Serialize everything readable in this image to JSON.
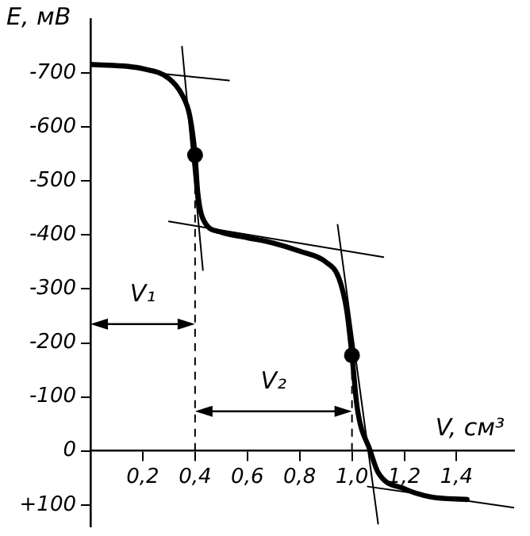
{
  "chart_data": {
    "type": "line",
    "xlabel": "V, см³",
    "ylabel": "E, мВ",
    "xlim": [
      0,
      1.62
    ],
    "ylim": [
      140,
      -800
    ],
    "xticks": [
      {
        "value": 0.2,
        "label": "0,2"
      },
      {
        "value": 0.4,
        "label": "0,4"
      },
      {
        "value": 0.6,
        "label": "0,6"
      },
      {
        "value": 0.8,
        "label": "0,8"
      },
      {
        "value": 1.0,
        "label": "1,0"
      },
      {
        "value": 1.2,
        "label": "1,2"
      },
      {
        "value": 1.4,
        "label": "1,4"
      }
    ],
    "yticks": [
      -700,
      -600,
      -500,
      -400,
      -300,
      -200,
      -100,
      0,
      {
        "value": 100,
        "label": "+100"
      }
    ],
    "grid": false,
    "legend": false,
    "marker": "none",
    "line_style": "solid",
    "series": [
      {
        "color": "#000000",
        "x": [
          0,
          0.2,
          0.3,
          0.35,
          0.38,
          0.4,
          0.41,
          0.43,
          0.5,
          0.6,
          0.7,
          0.8,
          0.9,
          0.95,
          0.98,
          1.0,
          1.02,
          1.07,
          1.1,
          1.2,
          1.3,
          1.44
        ],
        "values": [
          -716,
          -708,
          -690,
          -660,
          -620,
          -548,
          -480,
          -430,
          -405,
          -395,
          -385,
          -370,
          -350,
          -320,
          -260,
          -177,
          -80,
          0,
          40,
          70,
          85,
          90
        ]
      },
      {
        "color": "#000000",
        "x": [
          0.29,
          0.53
        ],
        "values": [
          -698,
          -686
        ]
      },
      {
        "color": "#000000",
        "x": [
          0.35,
          0.43
        ],
        "values": [
          -749,
          -335
        ]
      },
      {
        "color": "#000000",
        "x": [
          0.3,
          1.12
        ],
        "values": [
          -425,
          -359
        ]
      },
      {
        "color": "#000000",
        "x": [
          0.945,
          1.1
        ],
        "values": [
          -419,
          135
        ]
      },
      {
        "color": "#000000",
        "x": [
          1.06,
          1.62
        ],
        "values": [
          66,
          105
        ]
      },
      {
        "type": "scatter",
        "marker": "circle",
        "color": "#000000",
        "x": [
          0.4,
          1.0
        ],
        "values": [
          -548,
          -177
        ]
      }
    ],
    "ref_lines": [
      {
        "axis": "x",
        "value": 0.4,
        "line_style": "dashed"
      },
      {
        "axis": "x",
        "value": 1.0,
        "line_style": "dashed"
      }
    ],
    "annotations": [
      "V₁",
      "V₂"
    ]
  }
}
